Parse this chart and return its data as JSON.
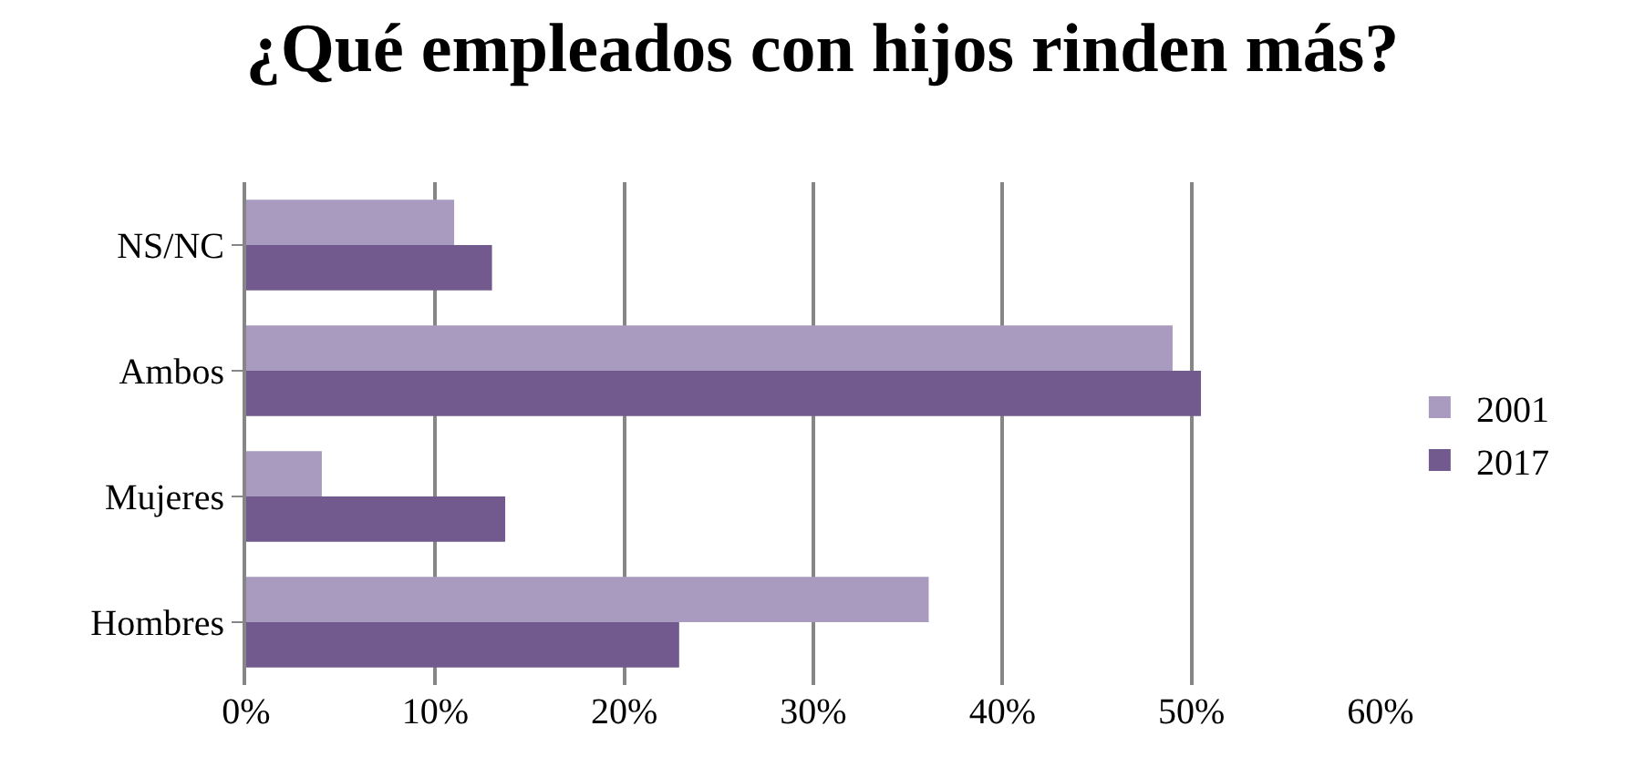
{
  "chart_data": {
    "type": "bar",
    "orientation": "horizontal",
    "title": "¿Qué empleados con hijos rinden más?",
    "categories": [
      "NS/NC",
      "Ambos",
      "Mujeres",
      "Hombres"
    ],
    "series": [
      {
        "name": "2001",
        "color": "#a99bbf",
        "values": [
          11.0,
          49.0,
          4.0,
          36.1
        ]
      },
      {
        "name": "2017",
        "color": "#725a8f",
        "values": [
          13.0,
          50.5,
          13.7,
          22.9
        ]
      }
    ],
    "xlim": [
      0,
      60
    ],
    "xticks": [
      {
        "value": 0,
        "label": "0%"
      },
      {
        "value": 10,
        "label": "10%"
      },
      {
        "value": 20,
        "label": "20%"
      },
      {
        "value": 30,
        "label": "30%"
      },
      {
        "value": 40,
        "label": "40%"
      },
      {
        "value": 50,
        "label": "50%"
      },
      {
        "value": 60,
        "label": "60%"
      }
    ],
    "grid": "x",
    "legend": "right"
  }
}
